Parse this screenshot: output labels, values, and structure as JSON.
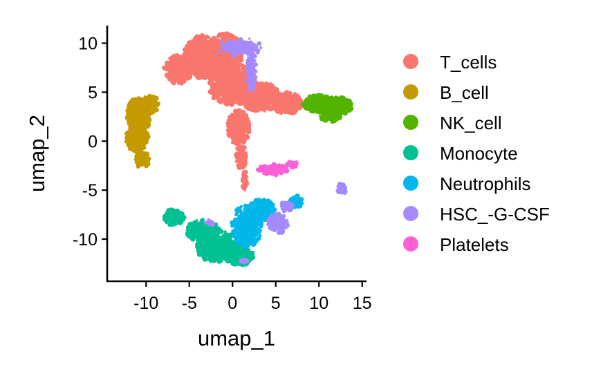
{
  "chart_data": {
    "type": "scatter",
    "title": "",
    "xlabel": "umap_1",
    "ylabel": "umap_2",
    "xlim": [
      -14.5,
      15.5
    ],
    "ylim": [
      -14.3,
      11.8
    ],
    "xticks": [
      -10,
      -5,
      0,
      5,
      10,
      15
    ],
    "xtick_labels": [
      "-10",
      "-5",
      "0",
      "5",
      "10",
      "15"
    ],
    "yticks": [
      -10,
      -5,
      0,
      5,
      10
    ],
    "ytick_labels": [
      "-10",
      "-5",
      "0",
      "5",
      "10"
    ],
    "grid": false,
    "legend_position": "right",
    "series": [
      {
        "name": "T_cells",
        "color": "#F8766D",
        "clusters": [
          {
            "cx": -6.3,
            "cy": 7.3,
            "rx": 1.6,
            "ry": 1.5,
            "n": 220
          },
          {
            "cx": -3.5,
            "cy": 8.6,
            "rx": 2.2,
            "ry": 2.2,
            "n": 480
          },
          {
            "cx": -1.0,
            "cy": 8.9,
            "rx": 2.2,
            "ry": 2.1,
            "n": 480
          },
          {
            "cx": 0.0,
            "cy": 5.8,
            "rx": 2.8,
            "ry": 2.2,
            "n": 520
          },
          {
            "cx": 3.2,
            "cy": 4.5,
            "rx": 2.3,
            "ry": 1.5,
            "n": 380
          },
          {
            "cx": 6.3,
            "cy": 3.9,
            "rx": 1.8,
            "ry": 1.1,
            "n": 240
          },
          {
            "cx": 0.7,
            "cy": 1.4,
            "rx": 1.3,
            "ry": 1.8,
            "n": 240
          },
          {
            "cx": 1.0,
            "cy": -1.6,
            "rx": 0.6,
            "ry": 1.2,
            "n": 90
          },
          {
            "cx": 1.4,
            "cy": -4.0,
            "rx": 0.28,
            "ry": 1.1,
            "n": 30
          }
        ]
      },
      {
        "name": "B_cell",
        "color": "#C49A00",
        "clusters": [
          {
            "cx": -10.9,
            "cy": 2.5,
            "rx": 1.35,
            "ry": 2.0,
            "n": 240
          },
          {
            "cx": -11.0,
            "cy": 0.3,
            "rx": 1.3,
            "ry": 1.5,
            "n": 170
          },
          {
            "cx": -10.4,
            "cy": -1.9,
            "rx": 0.8,
            "ry": 0.9,
            "n": 60
          },
          {
            "cx": -9.5,
            "cy": 3.8,
            "rx": 0.9,
            "ry": 1.0,
            "n": 60
          }
        ]
      },
      {
        "name": "NK_cell",
        "color": "#53B400",
        "clusters": [
          {
            "cx": 10.0,
            "cy": 3.8,
            "rx": 2.0,
            "ry": 0.9,
            "n": 170
          },
          {
            "cx": 12.5,
            "cy": 3.6,
            "rx": 1.4,
            "ry": 0.9,
            "n": 150
          },
          {
            "cx": 11.3,
            "cy": 2.5,
            "rx": 1.2,
            "ry": 0.6,
            "n": 60
          }
        ]
      },
      {
        "name": "Monocyte",
        "color": "#00C094",
        "clusters": [
          {
            "cx": -6.8,
            "cy": -7.8,
            "rx": 1.2,
            "ry": 0.85,
            "n": 100
          },
          {
            "cx": -3.4,
            "cy": -9.2,
            "rx": 2.0,
            "ry": 1.2,
            "n": 200
          },
          {
            "cx": -1.5,
            "cy": -10.8,
            "rx": 2.7,
            "ry": 1.6,
            "n": 340
          },
          {
            "cx": 0.9,
            "cy": -11.8,
            "rx": 1.6,
            "ry": 0.9,
            "n": 110
          }
        ]
      },
      {
        "name": "Neutrophils",
        "color": "#00B6EB",
        "clusters": [
          {
            "cx": 1.6,
            "cy": -8.7,
            "rx": 1.8,
            "ry": 2.2,
            "n": 260
          },
          {
            "cx": 3.4,
            "cy": -7.0,
            "rx": 1.5,
            "ry": 1.1,
            "n": 130
          },
          {
            "cx": 7.4,
            "cy": -6.2,
            "rx": 0.8,
            "ry": 0.6,
            "n": 45
          }
        ]
      },
      {
        "name": "HSC_-G-CSF",
        "color": "#A58AFF",
        "clusters": [
          {
            "cx": 5.3,
            "cy": -8.4,
            "rx": 1.3,
            "ry": 1.0,
            "n": 110
          },
          {
            "cx": 6.3,
            "cy": -6.6,
            "rx": 0.7,
            "ry": 0.6,
            "n": 40
          },
          {
            "cx": 12.6,
            "cy": -4.9,
            "rx": 0.6,
            "ry": 0.55,
            "n": 25
          },
          {
            "cx": 2.2,
            "cy": 7.2,
            "rx": 0.6,
            "ry": 2.4,
            "n": 50
          },
          {
            "cx": 0.8,
            "cy": 9.6,
            "rx": 3.0,
            "ry": 1.0,
            "n": 25
          },
          {
            "cx": -2.6,
            "cy": -8.3,
            "rx": 0.6,
            "ry": 0.3,
            "n": 15
          },
          {
            "cx": 1.3,
            "cy": -12.3,
            "rx": 0.5,
            "ry": 0.3,
            "n": 10
          }
        ]
      },
      {
        "name": "Platelets",
        "color": "#FB61D7",
        "clusters": [
          {
            "cx": 4.6,
            "cy": -2.9,
            "rx": 1.7,
            "ry": 0.55,
            "n": 90
          },
          {
            "cx": 6.9,
            "cy": -2.4,
            "rx": 0.7,
            "ry": 0.35,
            "n": 20
          }
        ]
      }
    ]
  }
}
